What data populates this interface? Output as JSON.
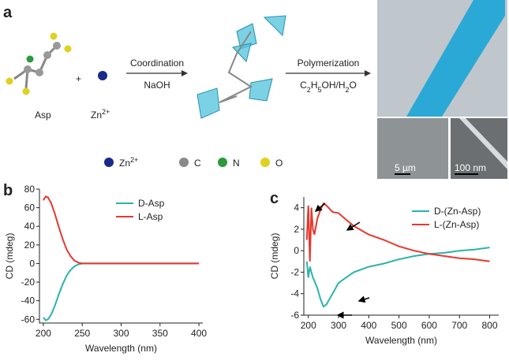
{
  "panel_a": {
    "label": "a",
    "reactant1": "Asp",
    "plus": "+",
    "reactant2": {
      "base": "Zn",
      "sup": "2+"
    },
    "step1": {
      "top": "Coordination",
      "bottom": "NaOH"
    },
    "step2": {
      "top": "Polymerization",
      "bottom": "C2H5OH/H2O"
    },
    "legend": [
      {
        "base": "Zn",
        "sup": "2+",
        "color": "#1a2a8a"
      },
      {
        "base": "C",
        "color": "#8a8a8a"
      },
      {
        "base": "N",
        "color": "#2a9a3a"
      },
      {
        "base": "O",
        "color": "#e0d020"
      }
    ],
    "scale_bars": [
      "5 µm",
      "100 nm"
    ]
  },
  "chart_data": [
    {
      "type": "line",
      "panel": "b",
      "ylabel": "CD (mdeg)",
      "xlabel": "Wavelength (nm)",
      "xlim": [
        195,
        405
      ],
      "ylim": [
        -64,
        80
      ],
      "xticks": [
        200,
        250,
        300,
        350,
        400
      ],
      "yticks": [
        -60,
        -40,
        -20,
        0,
        20,
        40,
        60,
        80
      ],
      "legend": "upper right",
      "x": [
        200,
        203,
        206,
        210,
        215,
        220,
        225,
        230,
        235,
        240,
        245,
        250,
        260,
        280,
        300,
        350,
        400
      ],
      "series": [
        {
          "name": "D-Asp",
          "color": "#2bb3ad",
          "values": [
            -58,
            -61,
            -60,
            -55,
            -45,
            -33,
            -22,
            -13,
            -7,
            -3,
            -1,
            0,
            0,
            0,
            0,
            0,
            0
          ]
        },
        {
          "name": "L-Asp",
          "color": "#e8372c",
          "values": [
            68,
            72,
            71,
            65,
            53,
            39,
            26,
            15,
            8,
            3,
            1,
            0,
            0,
            0,
            0,
            0,
            0
          ]
        }
      ]
    },
    {
      "type": "line",
      "panel": "c",
      "ylabel": "CD (mdeg)",
      "xlabel": "Wavelength (nm)",
      "xlim": [
        185,
        830
      ],
      "ylim": [
        -6,
        5
      ],
      "xticks": [
        200,
        300,
        400,
        500,
        600,
        700,
        800
      ],
      "yticks": [
        -6,
        -4,
        -2,
        0,
        2,
        4
      ],
      "legend": "upper right",
      "x": [
        195,
        200,
        205,
        210,
        215,
        220,
        230,
        240,
        250,
        260,
        280,
        300,
        320,
        350,
        400,
        450,
        500,
        550,
        600,
        650,
        700,
        750,
        800
      ],
      "series": [
        {
          "name": "D-(Zn-Asp)",
          "color": "#2bb3ad",
          "values": [
            -1,
            -2.5,
            -1.5,
            -2,
            -2.5,
            -2.8,
            -3.5,
            -4.5,
            -5.2,
            -5,
            -4,
            -3,
            -2.6,
            -2,
            -1.5,
            -1.2,
            -0.8,
            -0.5,
            -0.3,
            -0.2,
            0,
            0.1,
            0.3
          ]
        },
        {
          "name": "L-(Zn-Asp)",
          "color": "#e8372c",
          "values": [
            1,
            4.2,
            -1,
            4,
            2,
            1.5,
            3,
            3.8,
            4.4,
            4.2,
            3.6,
            3.5,
            3,
            2.3,
            1.5,
            1,
            0.4,
            0,
            -0.3,
            -0.5,
            -0.7,
            -0.8,
            -1
          ]
        }
      ]
    }
  ]
}
